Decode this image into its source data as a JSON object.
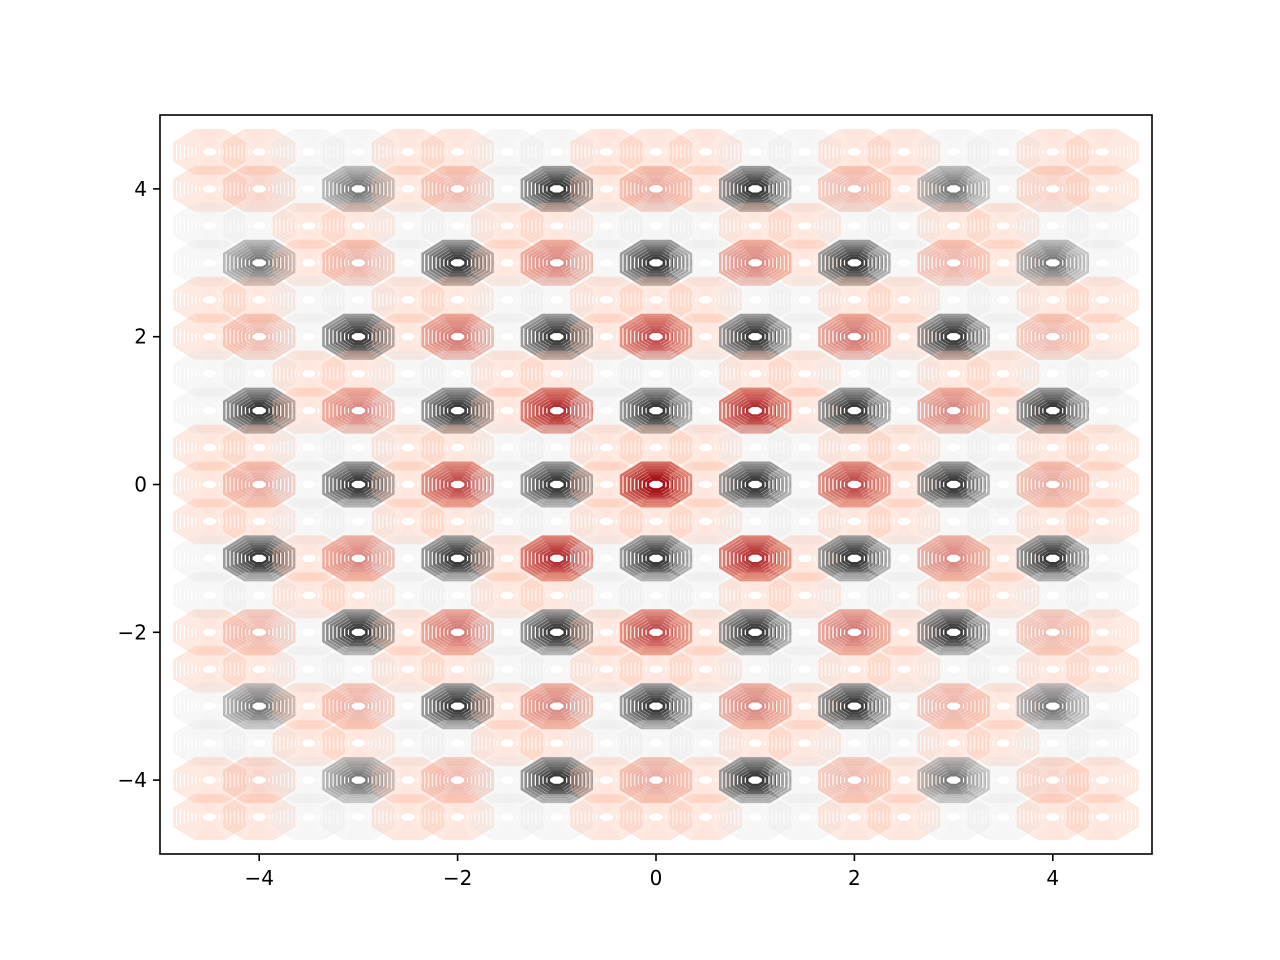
{
  "chart_data": {
    "type": "contour",
    "title": "",
    "xlabel": "",
    "ylabel": "",
    "xlim": [
      -5,
      5
    ],
    "ylim": [
      -5,
      5
    ],
    "grid": false,
    "legend": "none",
    "function_description": "cos(pi*x)*cos(pi*y)*exp(-(x^2+y^2)/16) bands; central cells red (Reds colormap), outer cells grey (Greys colormap)",
    "cell_centers_x": [
      -4.5,
      -4,
      -3.5,
      -3,
      -2.5,
      -2,
      -1.5,
      -1,
      -0.5,
      0,
      0.5,
      1,
      1.5,
      2,
      2.5,
      3,
      3.5,
      4,
      4.5
    ],
    "cell_centers_y": [
      4.5,
      4,
      3.5,
      3,
      2.5,
      2,
      1.5,
      1,
      0.5,
      0,
      -0.5,
      -1,
      -1.5,
      -2,
      -2.5,
      -3,
      -3.5,
      -4,
      -4.5
    ],
    "contour_levels": 8,
    "x_ticks": [
      -4,
      -2,
      0,
      2,
      4
    ],
    "y_ticks": [
      -4,
      -2,
      0,
      2,
      4
    ],
    "x_tick_labels": [
      "−4",
      "−2",
      "0",
      "2",
      "4"
    ],
    "y_tick_labels": [
      "−4",
      "−2",
      "0",
      "2",
      "4"
    ],
    "colors": {
      "positive_dark": "#a50f15",
      "positive_light": "#fcbba1",
      "negative_dark": "#3a3a3a",
      "negative_light": "#e6e6e6"
    }
  }
}
